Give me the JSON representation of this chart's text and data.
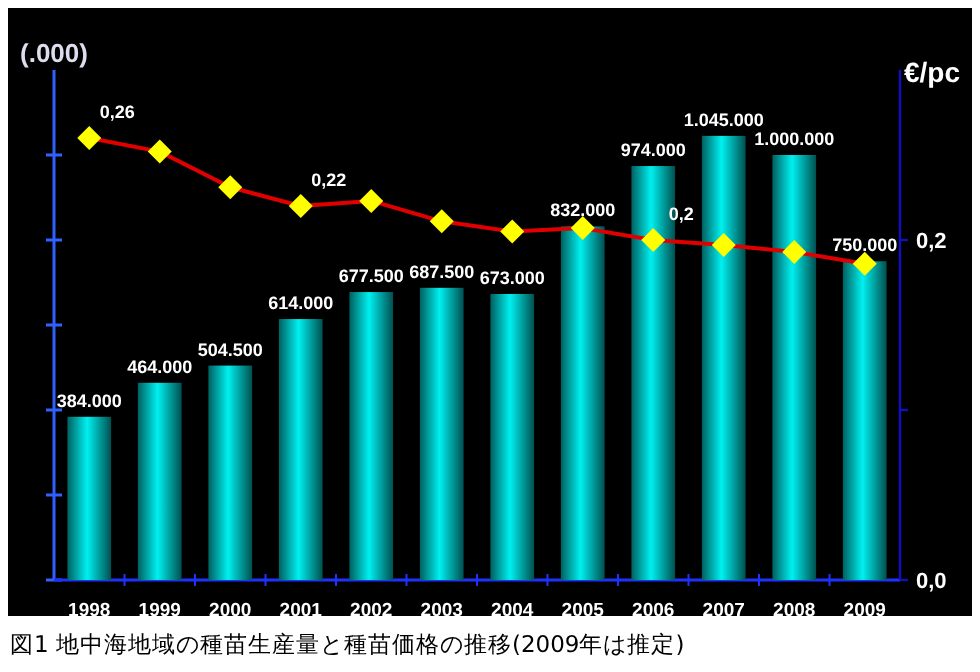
{
  "chart_data": {
    "type": "bar",
    "categories": [
      "1998",
      "1999",
      "2000",
      "2001",
      "2002",
      "2003",
      "2004",
      "2005",
      "2006",
      "2007",
      "2008",
      "2009"
    ],
    "ylabel": "(.000)",
    "y2label": "€/pc",
    "ylim": [
      0,
      1200000
    ],
    "yticks": [
      {
        "value": 0,
        "label": null
      },
      {
        "value": 200000,
        "label": null
      },
      {
        "value": 400000,
        "label": null
      },
      {
        "value": 600000,
        "label": null
      },
      {
        "value": 800000,
        "label": null
      },
      {
        "value": 1000000,
        "label": null
      }
    ],
    "y2lim": [
      0,
      0.3
    ],
    "y2ticks": [
      {
        "value": 0,
        "label": "0,0"
      },
      {
        "value": 0.1,
        "label": null
      },
      {
        "value": 0.2,
        "label": "0,2"
      }
    ],
    "marker": "diamond",
    "series": [
      {
        "color": "#00f0f0",
        "values": [
          384000,
          464000,
          504500,
          614000,
          677500,
          687500,
          673000,
          832000,
          974000,
          1045000,
          1000000,
          750000
        ],
        "value_labels": [
          "384.000",
          "464.000",
          "504.500",
          "614.000",
          "677.500",
          "687.500",
          "673.000",
          "832.000",
          "974.000",
          "1.045.000",
          "1.000.000",
          "750.000"
        ]
      },
      {
        "type": "line",
        "axis": "y2",
        "color": "#e00000",
        "colors": [
          "#ffff00",
          "#ffff00",
          "#ffff00",
          "#ffff00",
          "#ffff00",
          "#ffff00",
          "#ffff00",
          "#ffff00",
          "#ffff00",
          "#ffff00",
          "#ffff00",
          "#ffff00"
        ],
        "values": [
          0.26,
          0.252,
          0.231,
          0.22,
          0.223,
          0.211,
          0.205,
          0.207,
          0.2,
          0.197,
          0.193,
          0.186
        ],
        "value_labels": [
          "0,26",
          null,
          null,
          "0,22",
          null,
          null,
          null,
          null,
          "0,2",
          null,
          null,
          null
        ]
      }
    ],
    "annotations": [
      "図1  地中海地域の種苗生産量と種苗価格の推移(2009年は推定)"
    ]
  }
}
